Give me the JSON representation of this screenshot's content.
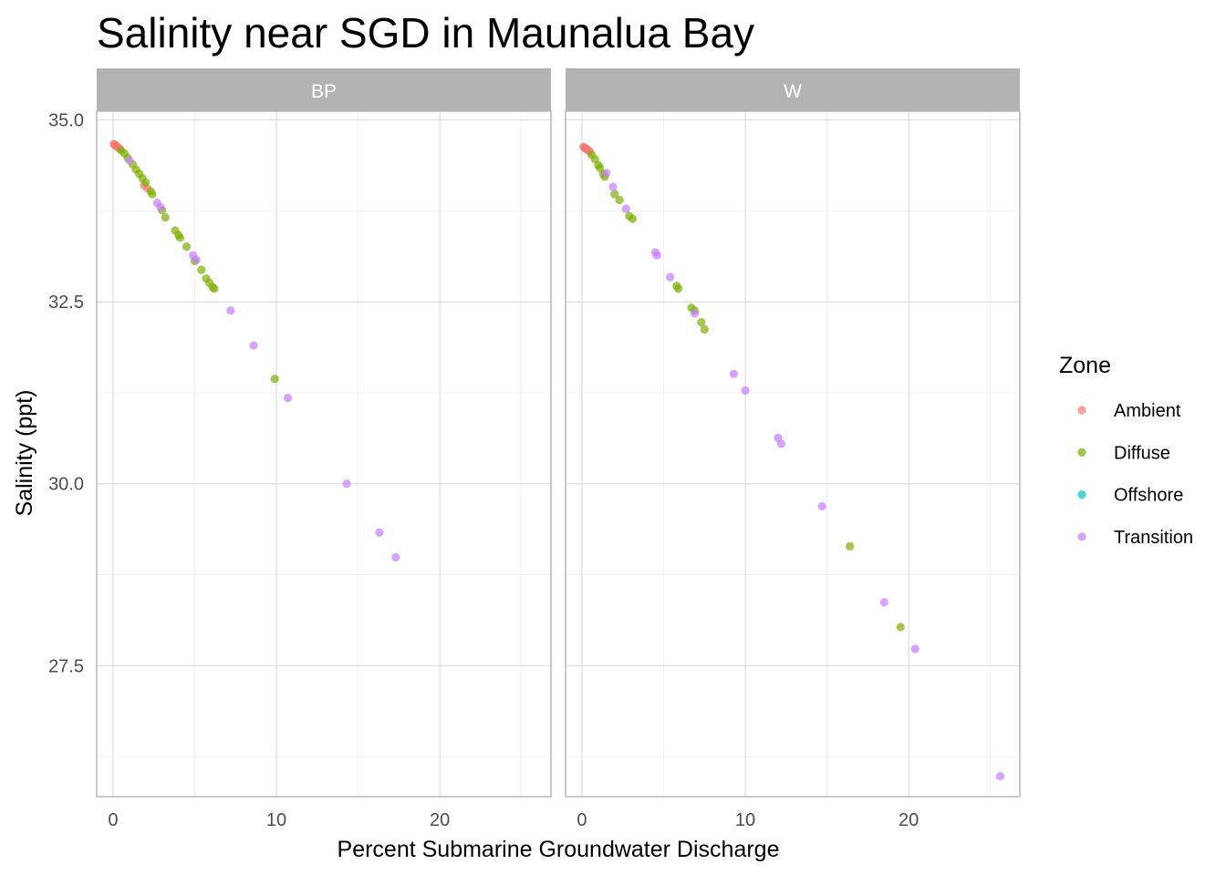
{
  "chart_data": {
    "type": "scatter",
    "title": "Salinity near SGD in Maunalua Bay",
    "xlabel": "Percent Submarine Groundwater Discharge",
    "ylabel": "Salinity (ppt)",
    "xlim": [
      -1,
      26.8
    ],
    "ylim": [
      25.7,
      35.12
    ],
    "x_ticks": [
      0,
      10,
      20
    ],
    "y_ticks": [
      27.5,
      30.0,
      32.5,
      35.0
    ],
    "y_tick_labels": [
      "27.5",
      "30.0",
      "32.5",
      "35.0"
    ],
    "grid": true,
    "facets": [
      "BP",
      "W"
    ],
    "legend": {
      "title": "Zone",
      "position": "right"
    },
    "series": [
      {
        "name": "Ambient",
        "color": "#F8766D",
        "points": {
          "BP": [
            [
              0.05,
              34.67
            ],
            [
              0.1,
              34.66
            ],
            [
              0.15,
              34.65
            ],
            [
              0.2,
              34.64
            ],
            [
              0.3,
              34.62
            ],
            [
              0.4,
              34.61
            ],
            [
              1.9,
              34.1
            ],
            [
              2.1,
              34.06
            ]
          ],
          "W": [
            [
              0.1,
              34.63
            ],
            [
              0.15,
              34.62
            ],
            [
              0.2,
              34.61
            ],
            [
              0.3,
              34.6
            ],
            [
              0.4,
              34.58
            ],
            [
              0.5,
              34.56
            ]
          ]
        }
      },
      {
        "name": "Diffuse",
        "color": "#7CAE00",
        "points": {
          "BP": [
            [
              0.5,
              34.58
            ],
            [
              0.7,
              34.54
            ],
            [
              0.9,
              34.48
            ],
            [
              1.2,
              34.39
            ],
            [
              1.4,
              34.32
            ],
            [
              1.6,
              34.26
            ],
            [
              1.8,
              34.2
            ],
            [
              2.0,
              34.14
            ],
            [
              2.3,
              34.02
            ],
            [
              2.4,
              33.98
            ],
            [
              3.0,
              33.76
            ],
            [
              3.2,
              33.66
            ],
            [
              3.8,
              33.48
            ],
            [
              4.0,
              33.42
            ],
            [
              4.1,
              33.38
            ],
            [
              4.5,
              33.26
            ],
            [
              5.0,
              33.06
            ],
            [
              5.4,
              32.94
            ],
            [
              5.7,
              32.82
            ],
            [
              5.9,
              32.76
            ],
            [
              6.1,
              32.7
            ],
            [
              6.2,
              32.68
            ],
            [
              9.9,
              31.44
            ]
          ],
          "W": [
            [
              0.6,
              34.52
            ],
            [
              0.8,
              34.46
            ],
            [
              1.0,
              34.38
            ],
            [
              1.1,
              34.34
            ],
            [
              1.3,
              34.26
            ],
            [
              1.4,
              34.22
            ],
            [
              2.0,
              33.98
            ],
            [
              2.3,
              33.9
            ],
            [
              2.9,
              33.68
            ],
            [
              3.1,
              33.64
            ],
            [
              5.8,
              32.72
            ],
            [
              5.9,
              32.68
            ],
            [
              6.7,
              32.42
            ],
            [
              6.9,
              32.38
            ],
            [
              7.3,
              32.22
            ],
            [
              7.5,
              32.12
            ],
            [
              16.4,
              29.14
            ],
            [
              19.5,
              28.03
            ]
          ]
        }
      },
      {
        "name": "Offshore",
        "color": "#00BFC4",
        "points": {
          "BP": [],
          "W": []
        }
      },
      {
        "name": "Transition",
        "color": "#C77CFF",
        "points": {
          "BP": [
            [
              1.0,
              34.44
            ],
            [
              2.7,
              33.86
            ],
            [
              2.9,
              33.8
            ],
            [
              4.9,
              33.14
            ],
            [
              5.1,
              33.08
            ],
            [
              7.2,
              32.38
            ],
            [
              8.6,
              31.9
            ],
            [
              10.7,
              31.18
            ],
            [
              14.3,
              30.0
            ],
            [
              16.3,
              29.33
            ],
            [
              17.3,
              28.99
            ]
          ],
          "W": [
            [
              1.5,
              34.27
            ],
            [
              1.9,
              34.08
            ],
            [
              2.7,
              33.78
            ],
            [
              4.5,
              33.18
            ],
            [
              4.6,
              33.14
            ],
            [
              5.4,
              32.84
            ],
            [
              6.9,
              32.34
            ],
            [
              9.3,
              31.51
            ],
            [
              10.0,
              31.28
            ],
            [
              12.0,
              30.63
            ],
            [
              12.2,
              30.55
            ],
            [
              14.7,
              29.69
            ],
            [
              18.5,
              28.37
            ],
            [
              20.4,
              27.73
            ],
            [
              25.6,
              25.98
            ]
          ]
        }
      }
    ]
  }
}
